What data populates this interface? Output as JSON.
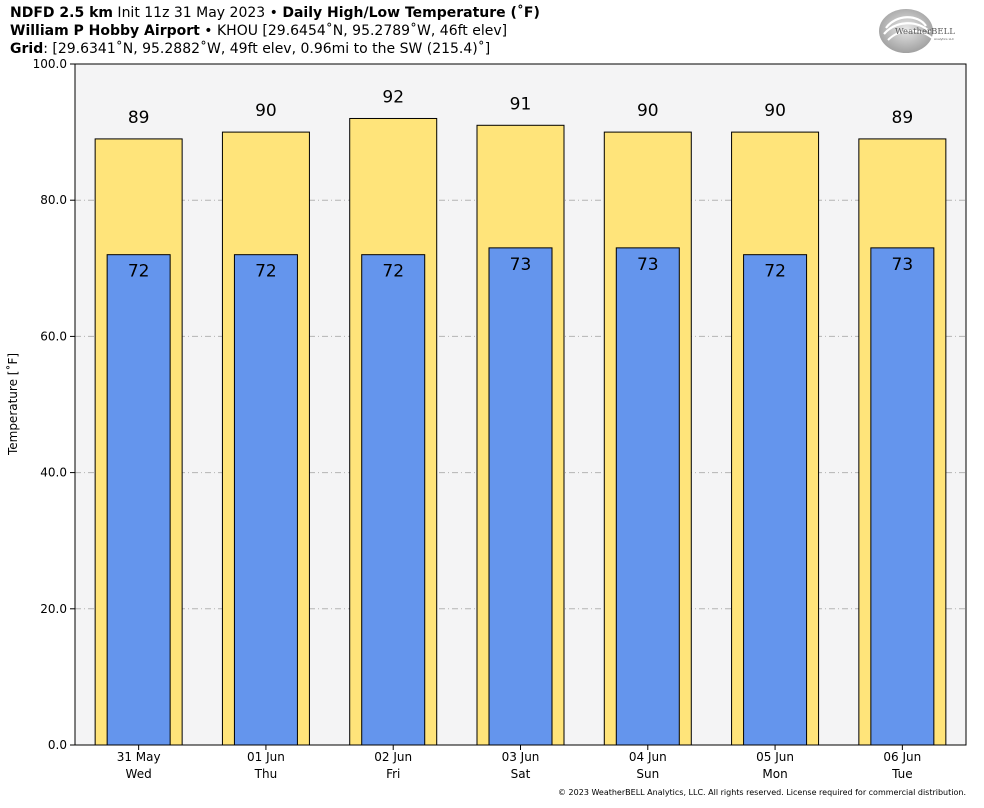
{
  "header": {
    "line1_model": "NDFD 2.5 km",
    "line1_init": " Init 11z 31 May 2023 • ",
    "line1_product": "Daily High/Low Temperature (˚F)",
    "line2_station": "William P Hobby Airport",
    "line2_detail": " • KHOU [29.6454˚N, 95.2789˚W, 46ft elev]",
    "line3_label": "Grid",
    "line3_detail": ": [29.6341˚N, 95.2882˚W, 49ft elev, 0.96mi to the SW (215.4)˚]"
  },
  "logo": {
    "text": "WeatherBELL",
    "subtext": "Analytics LLC"
  },
  "footer": {
    "copyright": "© 2023 WeatherBELL Analytics, LLC. All rights reserved. License required for commercial distribution."
  },
  "colors": {
    "high": "#ffe47a",
    "low": "#6495ed",
    "plot_bg": "#f4f4f5",
    "grid": "#b4b4b4"
  },
  "chart_data": {
    "type": "bar",
    "ylabel": "Temperature [˚F]",
    "ylim": [
      0,
      100
    ],
    "yticks": [
      0,
      20,
      40,
      60,
      80,
      100
    ],
    "ytick_labels": [
      "0.0",
      "20.0",
      "40.0",
      "60.0",
      "80.0",
      "100.0"
    ],
    "grid": true,
    "categories": [
      {
        "date": "31 May",
        "day": "Wed"
      },
      {
        "date": "01 Jun",
        "day": "Thu"
      },
      {
        "date": "02 Jun",
        "day": "Fri"
      },
      {
        "date": "03 Jun",
        "day": "Sat"
      },
      {
        "date": "04 Jun",
        "day": "Sun"
      },
      {
        "date": "05 Jun",
        "day": "Mon"
      },
      {
        "date": "06 Jun",
        "day": "Tue"
      }
    ],
    "series": [
      {
        "key": "high",
        "values": [
          89,
          90,
          92,
          91,
          90,
          90,
          89
        ]
      },
      {
        "key": "low",
        "values": [
          72,
          72,
          72,
          73,
          73,
          72,
          73
        ]
      }
    ]
  }
}
